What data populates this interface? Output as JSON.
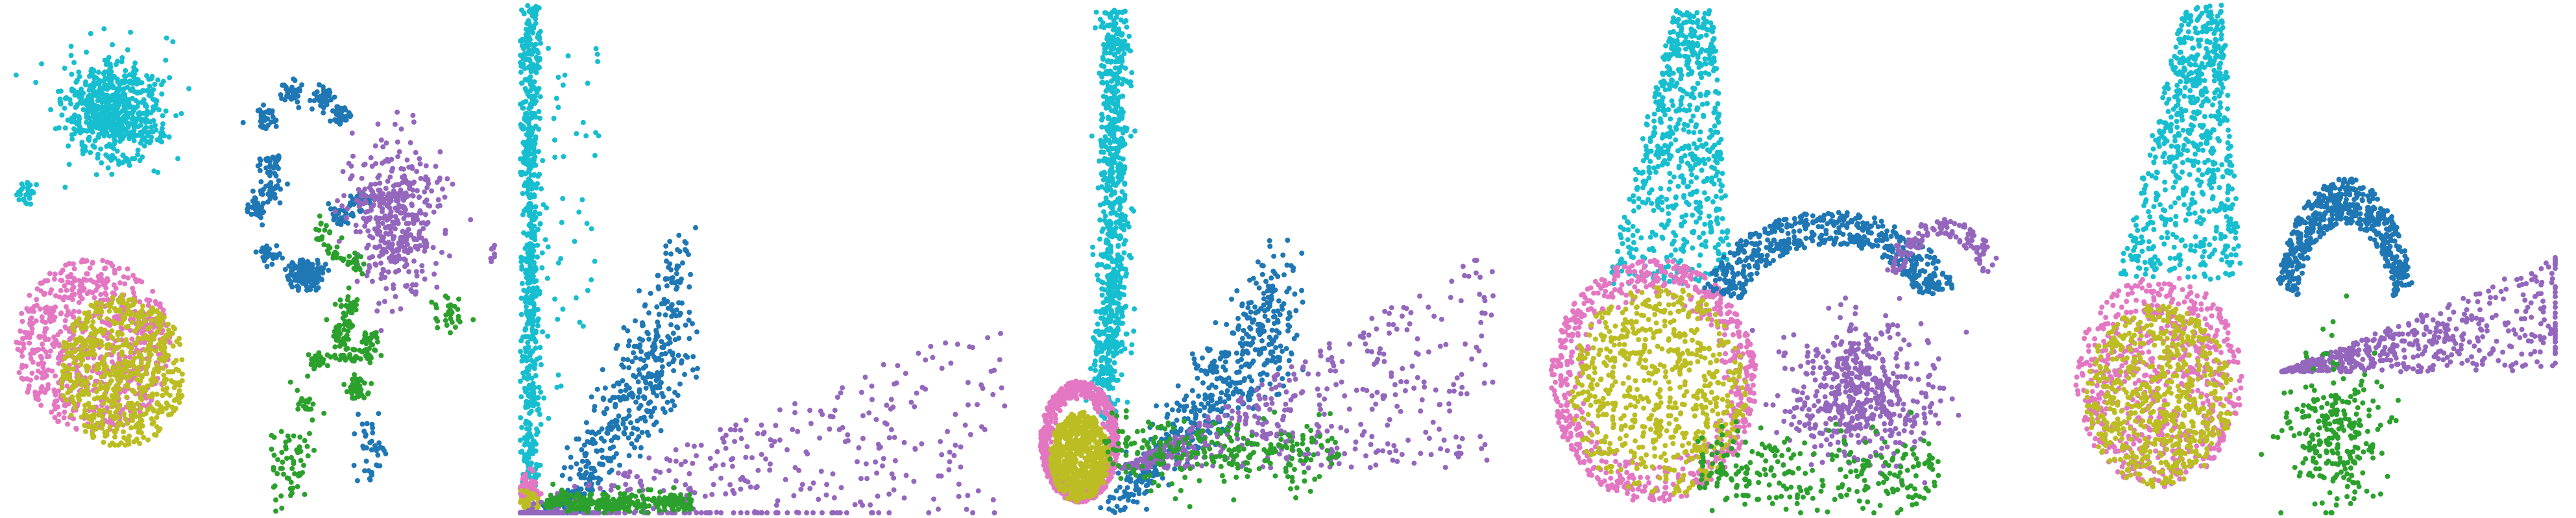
{
  "chart_data": [
    {
      "type": "scatter",
      "title": "",
      "xlabel": "",
      "ylabel": "",
      "grid": false,
      "legend": "none",
      "axes_visible": false,
      "xlim": [
        0,
        100
      ],
      "ylim": [
        0,
        100
      ],
      "series": [
        {
          "color": "#17becf",
          "clusters": [
            {
              "shape": "ellipse",
              "center": [
                22,
                79
              ],
              "spread": [
                9,
                9
              ],
              "count": 650
            },
            {
              "shape": "ellipse",
              "center": [
                4,
                63
              ],
              "spread": [
                2,
                2
              ],
              "count": 25
            }
          ]
        },
        {
          "color": "#e377c2",
          "clusters": [
            {
              "shape": "disk",
              "center": [
                18,
                33
              ],
              "spread": [
                16,
                17
              ],
              "count": 700
            }
          ]
        },
        {
          "color": "#bcbd22",
          "clusters": [
            {
              "shape": "disk",
              "center": [
                24,
                28
              ],
              "spread": [
                13,
                15
              ],
              "count": 650
            }
          ]
        },
        {
          "color": "#1f77b4",
          "clusters": [
            {
              "shape": "blobs",
              "center": [
                62,
                65
              ],
              "spread": [
                11,
                20
              ],
              "count": 520
            },
            {
              "shape": "ellipse",
              "center": [
                75,
                12
              ],
              "spread": [
                3,
                6
              ],
              "count": 40
            }
          ]
        },
        {
          "color": "#9467bd",
          "clusters": [
            {
              "shape": "ellipse",
              "center": [
                80,
                58
              ],
              "spread": [
                9,
                13
              ],
              "count": 420
            },
            {
              "shape": "ellipse",
              "center": [
                100,
                51
              ],
              "spread": [
                1,
                2
              ],
              "count": 10
            }
          ]
        },
        {
          "color": "#2ca02c",
          "clusters": [
            {
              "shape": "blobs",
              "center": [
                68,
                38
              ],
              "spread": [
                7,
                18
              ],
              "count": 260
            },
            {
              "shape": "ellipse",
              "center": [
                58,
                10
              ],
              "spread": [
                4,
                9
              ],
              "count": 60
            },
            {
              "shape": "ellipse",
              "center": [
                91,
                39
              ],
              "spread": [
                3,
                4
              ],
              "count": 30
            }
          ]
        }
      ]
    },
    {
      "type": "scatter",
      "title": "",
      "xlabel": "",
      "ylabel": "",
      "grid": false,
      "legend": "none",
      "axes_visible": false,
      "xlim": [
        0,
        100
      ],
      "ylim": [
        0,
        100
      ],
      "series": [
        {
          "color": "#17becf",
          "clusters": [
            {
              "shape": "vertical-band",
              "center": [
                2,
                52
              ],
              "spread": [
                2,
                48
              ],
              "count": 650
            },
            {
              "shape": "sparse",
              "center": [
                9,
                55
              ],
              "spread": [
                7,
                38
              ],
              "count": 60
            }
          ]
        },
        {
          "color": "#e377c2",
          "clusters": [
            {
              "shape": "ellipse",
              "center": [
                2,
                4
              ],
              "spread": [
                2,
                3
              ],
              "count": 80
            }
          ]
        },
        {
          "color": "#bcbd22",
          "clusters": [
            {
              "shape": "ellipse",
              "center": [
                2,
                2
              ],
              "spread": [
                2,
                2
              ],
              "count": 40
            }
          ]
        },
        {
          "color": "#1f77b4",
          "clusters": [
            {
              "shape": "wedge",
              "center": [
                18,
                25
              ],
              "spread": [
                16,
                35
              ],
              "count": 520
            }
          ]
        },
        {
          "color": "#9467bd",
          "clusters": [
            {
              "shape": "fan",
              "center": [
                30,
                8
              ],
              "spread": [
                58,
                22
              ],
              "count": 520
            }
          ]
        },
        {
          "color": "#2ca02c",
          "clusters": [
            {
              "shape": "flat-band",
              "center": [
                20,
                2
              ],
              "spread": [
                15,
                2
              ],
              "count": 260
            }
          ]
        }
      ]
    },
    {
      "type": "scatter",
      "title": "",
      "xlabel": "",
      "ylabel": "",
      "grid": false,
      "legend": "none",
      "axes_visible": false,
      "xlim": [
        0,
        100
      ],
      "ylim": [
        0,
        100
      ],
      "series": [
        {
          "color": "#17becf",
          "clusters": [
            {
              "shape": "vertical-band",
              "center": [
                16,
                65
              ],
              "spread": [
                3,
                34
              ],
              "count": 650
            },
            {
              "shape": "ellipse",
              "center": [
                14,
                27
              ],
              "spread": [
                3,
                8
              ],
              "count": 120
            }
          ]
        },
        {
          "color": "#e377c2",
          "clusters": [
            {
              "shape": "ring",
              "center": [
                9,
                14
              ],
              "spread": [
                8,
                12
              ],
              "count": 700
            }
          ]
        },
        {
          "color": "#bcbd22",
          "clusters": [
            {
              "shape": "disk",
              "center": [
                9,
                11
              ],
              "spread": [
                6,
                9
              ],
              "count": 650
            }
          ]
        },
        {
          "color": "#1f77b4",
          "clusters": [
            {
              "shape": "wedge",
              "center": [
                34,
                28
              ],
              "spread": [
                18,
                28
              ],
              "count": 520
            }
          ]
        },
        {
          "color": "#9467bd",
          "clusters": [
            {
              "shape": "fan",
              "center": [
                48,
                22
              ],
              "spread": [
                38,
                22
              ],
              "count": 520
            }
          ]
        },
        {
          "color": "#2ca02c",
          "clusters": [
            {
              "shape": "flat-band",
              "center": [
                38,
                12
              ],
              "spread": [
                24,
                7
              ],
              "count": 260
            }
          ]
        }
      ]
    },
    {
      "type": "scatter",
      "title": "",
      "xlabel": "",
      "ylabel": "",
      "grid": false,
      "legend": "none",
      "axes_visible": false,
      "xlim": [
        0,
        100
      ],
      "ylim": [
        0,
        100
      ],
      "series": [
        {
          "color": "#17becf",
          "clusters": [
            {
              "shape": "triangle-up",
              "center": [
                24,
                72
              ],
              "spread": [
                13,
                27
              ],
              "count": 650
            }
          ]
        },
        {
          "color": "#e377c2",
          "clusters": [
            {
              "shape": "ring",
              "center": [
                21,
                26
              ],
              "spread": [
                21,
                24
              ],
              "count": 700
            }
          ]
        },
        {
          "color": "#bcbd22",
          "clusters": [
            {
              "shape": "disk",
              "center": [
                22,
                24
              ],
              "spread": [
                18,
                21
              ],
              "count": 650
            }
          ]
        },
        {
          "color": "#1f77b4",
          "clusters": [
            {
              "shape": "arc",
              "center": [
                57,
                44
              ],
              "spread": [
                30,
                22
              ],
              "count": 520
            }
          ]
        },
        {
          "color": "#9467bd",
          "clusters": [
            {
              "shape": "ellipse",
              "center": [
                63,
                23
              ],
              "spread": [
                14,
                12
              ],
              "count": 520
            },
            {
              "shape": "arc",
              "center": [
                80,
                48
              ],
              "spread": [
                14,
                14
              ],
              "count": 120
            }
          ]
        },
        {
          "color": "#2ca02c",
          "clusters": [
            {
              "shape": "flat-band",
              "center": [
                55,
                8
              ],
              "spread": [
                25,
                8
              ],
              "count": 260
            }
          ]
        }
      ]
    },
    {
      "type": "scatter",
      "title": "",
      "xlabel": "",
      "ylabel": "",
      "grid": false,
      "legend": "none",
      "axes_visible": false,
      "xlim": [
        0,
        100
      ],
      "ylim": [
        0,
        100
      ],
      "series": [
        {
          "color": "#17becf",
          "clusters": [
            {
              "shape": "triangle-up",
              "center": [
                23,
                73
              ],
              "spread": [
                13,
                27
              ],
              "count": 650
            }
          ]
        },
        {
          "color": "#e377c2",
          "clusters": [
            {
              "shape": "disk",
              "center": [
                19,
                26
              ],
              "spread": [
                17,
                21
              ],
              "count": 700
            }
          ]
        },
        {
          "color": "#bcbd22",
          "clusters": [
            {
              "shape": "disk",
              "center": [
                19,
                23
              ],
              "spread": [
                15,
                18
              ],
              "count": 650
            }
          ]
        },
        {
          "color": "#1f77b4",
          "clusters": [
            {
              "shape": "arc",
              "center": [
                57,
                45
              ],
              "spread": [
                16,
                30
              ],
              "count": 520
            }
          ]
        },
        {
          "color": "#9467bd",
          "clusters": [
            {
              "shape": "fan",
              "center": [
                68,
                35
              ],
              "spread": [
                30,
                12
              ],
              "count": 520
            }
          ]
        },
        {
          "color": "#2ca02c",
          "clusters": [
            {
              "shape": "ellipse",
              "center": [
                55,
                16
              ],
              "spread": [
                10,
                13
              ],
              "count": 260
            }
          ]
        }
      ]
    }
  ]
}
